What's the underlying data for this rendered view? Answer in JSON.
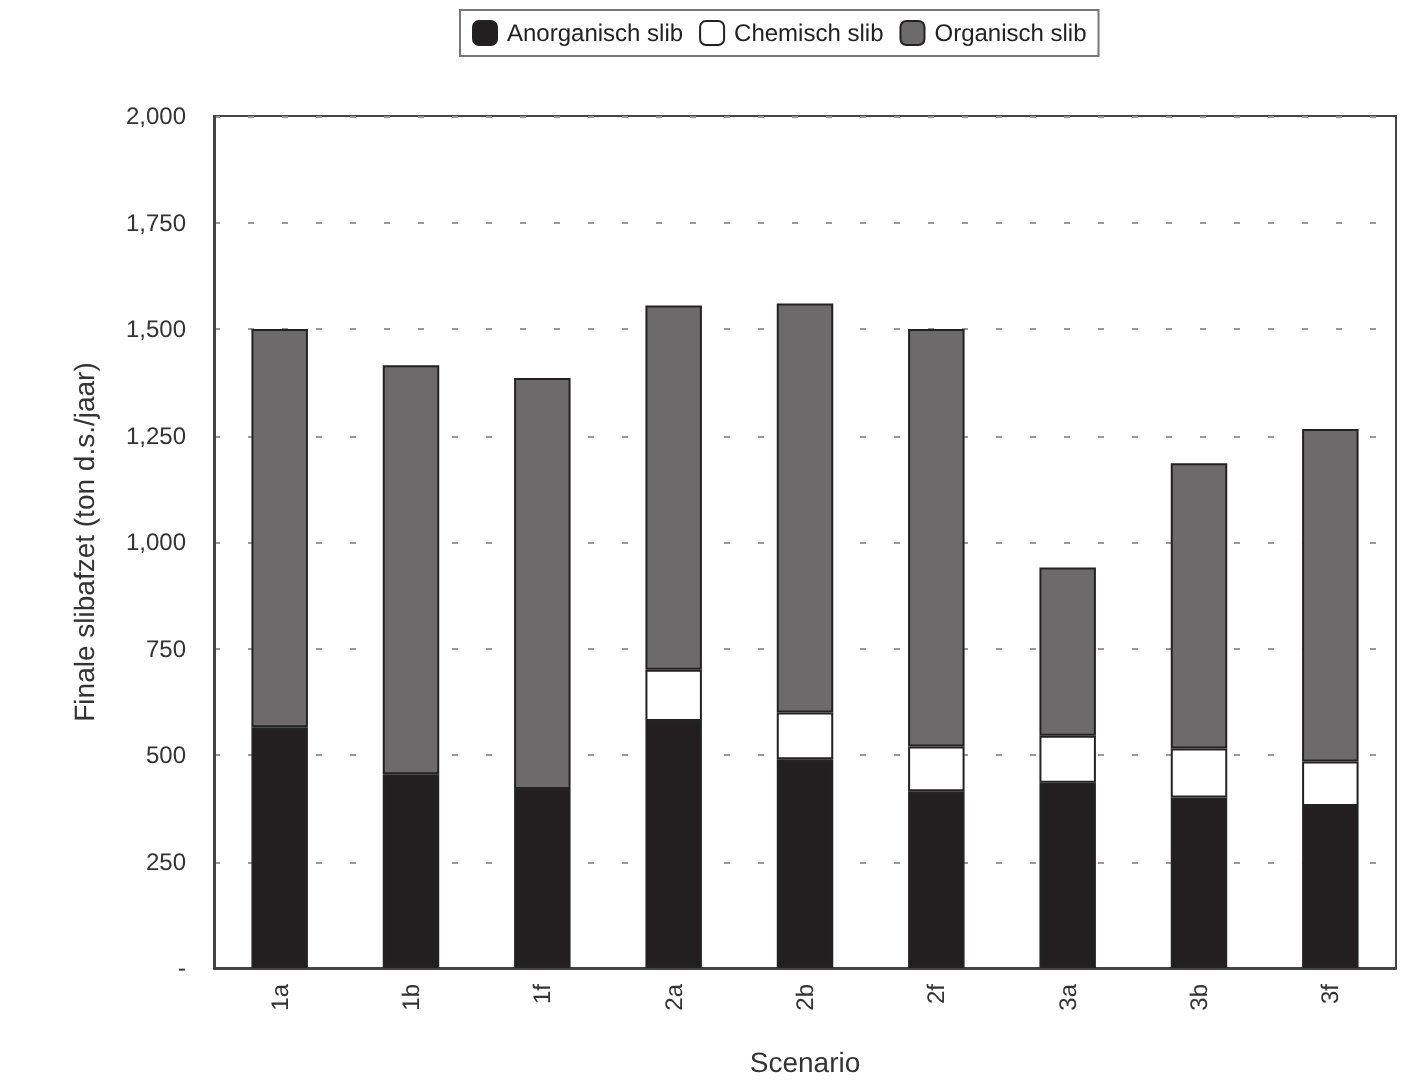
{
  "chart_data": {
    "type": "bar",
    "stacked": true,
    "xlabel": "Scenario",
    "ylabel": "Finale slibafzet (ton d.s./jaar)",
    "categories": [
      "1a",
      "1b",
      "1f",
      "2a",
      "2b",
      "2f",
      "3a",
      "3b",
      "3f"
    ],
    "series": [
      {
        "name": "Anorganisch slib",
        "color": "#231f20",
        "values": [
          565,
          455,
          420,
          580,
          490,
          415,
          435,
          400,
          380
        ]
      },
      {
        "name": "Chemisch slib",
        "color": "#ffffff",
        "values": [
          null,
          null,
          null,
          120,
          110,
          105,
          110,
          115,
          105
        ]
      },
      {
        "name": "Organisch slib",
        "color": "#6d6a6b",
        "values": [
          935,
          960,
          965,
          855,
          960,
          980,
          395,
          670,
          780
        ]
      }
    ],
    "ylim": [
      0,
      2000
    ],
    "yticks": [
      {
        "value": 0,
        "label": "-"
      },
      {
        "value": 250,
        "label": "250"
      },
      {
        "value": 500,
        "label": "500"
      },
      {
        "value": 750,
        "label": "750"
      },
      {
        "value": 1000,
        "label": "1,000"
      },
      {
        "value": 1250,
        "label": "1,250"
      },
      {
        "value": 1500,
        "label": "1,500"
      },
      {
        "value": 1750,
        "label": "1,750"
      },
      {
        "value": 2000,
        "label": "2,000"
      }
    ],
    "grid": "y",
    "legend": "top"
  }
}
